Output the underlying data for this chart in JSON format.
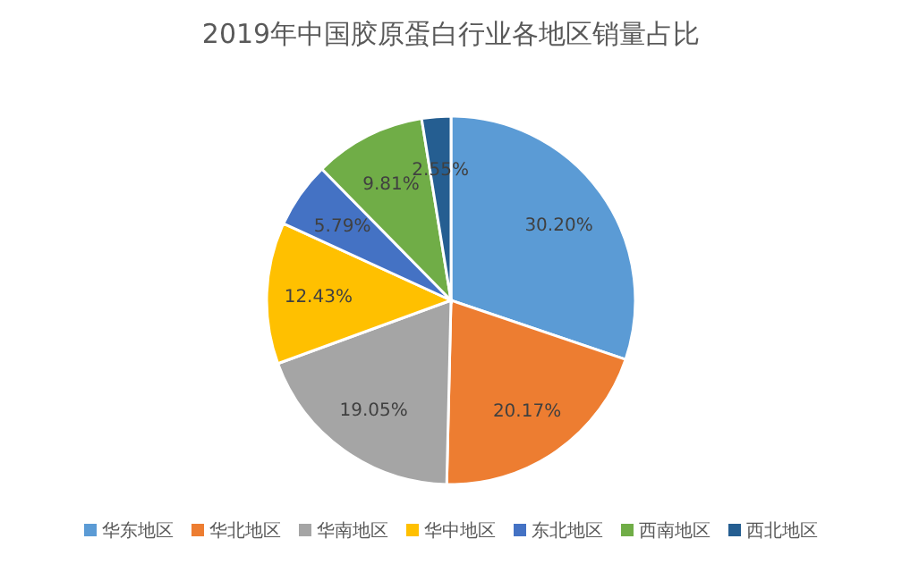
{
  "chart_data": {
    "type": "pie",
    "title": "2019年中国胶原蛋白行业各地区销量占比",
    "categories": [
      "华东地区",
      "华北地区",
      "华南地区",
      "华中地区",
      "东北地区",
      "西南地区",
      "西北地区"
    ],
    "values": [
      30.2,
      20.17,
      19.05,
      12.43,
      5.79,
      9.81,
      2.55
    ],
    "value_labels": [
      "30.20%",
      "20.17%",
      "19.05%",
      "12.43%",
      "5.79%",
      "9.81%",
      "2.55%"
    ],
    "colors": [
      "#5b9bd5",
      "#ed7d31",
      "#a5a5a5",
      "#ffc000",
      "#4472c4",
      "#70ad47",
      "#255e91"
    ],
    "legend": "bottom"
  }
}
